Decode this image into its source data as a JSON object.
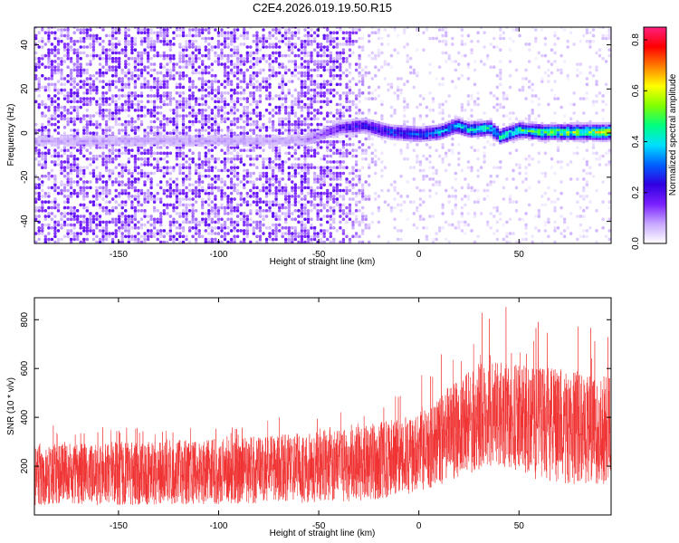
{
  "title": "C2E4.2026.019.19.50.R15",
  "chart_data": [
    {
      "type": "heatmap",
      "xlabel": "Height of straight line (km)",
      "ylabel": "Frequency (Hz)",
      "xlim": [
        -192,
        96
      ],
      "ylim": [
        -50,
        48
      ],
      "xticks": [
        -150,
        -100,
        -50,
        0,
        50
      ],
      "yticks": [
        -40,
        -20,
        0,
        20,
        40
      ],
      "colorbar": {
        "label": "Normalized spectral amplitude",
        "range": [
          0.0,
          0.85
        ],
        "ticks": [
          0.0,
          0.2,
          0.4,
          0.6,
          0.8
        ],
        "colors": [
          "#ffffff",
          "#c8a8ff",
          "#7a20ff",
          "#3000e0",
          "#0060ff",
          "#00e0ff",
          "#00ff80",
          "#80ff00",
          "#ffff00",
          "#ff8000",
          "#ff0000",
          "#ff2080"
        ]
      },
      "band_center_hz": [
        {
          "x": -70,
          "f": -4
        },
        {
          "x": -55,
          "f": -3
        },
        {
          "x": -40,
          "f": 2
        },
        {
          "x": -28,
          "f": 3
        },
        {
          "x": -15,
          "f": 0
        },
        {
          "x": 0,
          "f": -1
        },
        {
          "x": 10,
          "f": 0
        },
        {
          "x": 18,
          "f": 3
        },
        {
          "x": 25,
          "f": 1
        },
        {
          "x": 35,
          "f": 2
        },
        {
          "x": 40,
          "f": -2
        },
        {
          "x": 50,
          "f": 1
        },
        {
          "x": 60,
          "f": 0
        },
        {
          "x": 75,
          "f": 0
        },
        {
          "x": 96,
          "f": 0
        }
      ]
    },
    {
      "type": "line",
      "series_color": "#f03030",
      "xlabel": "Height of straight line (km)",
      "ylabel": "SNR (10 * v/v)",
      "xlim": [
        -192,
        96
      ],
      "ylim": [
        0,
        890
      ],
      "xticks": [
        -150,
        -100,
        -50,
        0,
        50
      ],
      "yticks": [
        200,
        400,
        600,
        800
      ],
      "envelope": [
        {
          "x": -192,
          "low": 40,
          "high": 290,
          "peak": 380
        },
        {
          "x": -150,
          "low": 40,
          "high": 300,
          "peak": 360
        },
        {
          "x": -100,
          "low": 45,
          "high": 310,
          "peak": 370
        },
        {
          "x": -50,
          "low": 50,
          "high": 340,
          "peak": 420
        },
        {
          "x": -25,
          "low": 60,
          "high": 370,
          "peak": 500
        },
        {
          "x": 0,
          "low": 90,
          "high": 420,
          "peak": 600
        },
        {
          "x": 20,
          "low": 150,
          "high": 560,
          "peak": 720
        },
        {
          "x": 35,
          "low": 200,
          "high": 640,
          "peak": 880
        },
        {
          "x": 50,
          "low": 160,
          "high": 620,
          "peak": 840
        },
        {
          "x": 70,
          "low": 130,
          "high": 600,
          "peak": 800
        },
        {
          "x": 96,
          "low": 120,
          "high": 570,
          "peak": 760
        }
      ]
    }
  ]
}
